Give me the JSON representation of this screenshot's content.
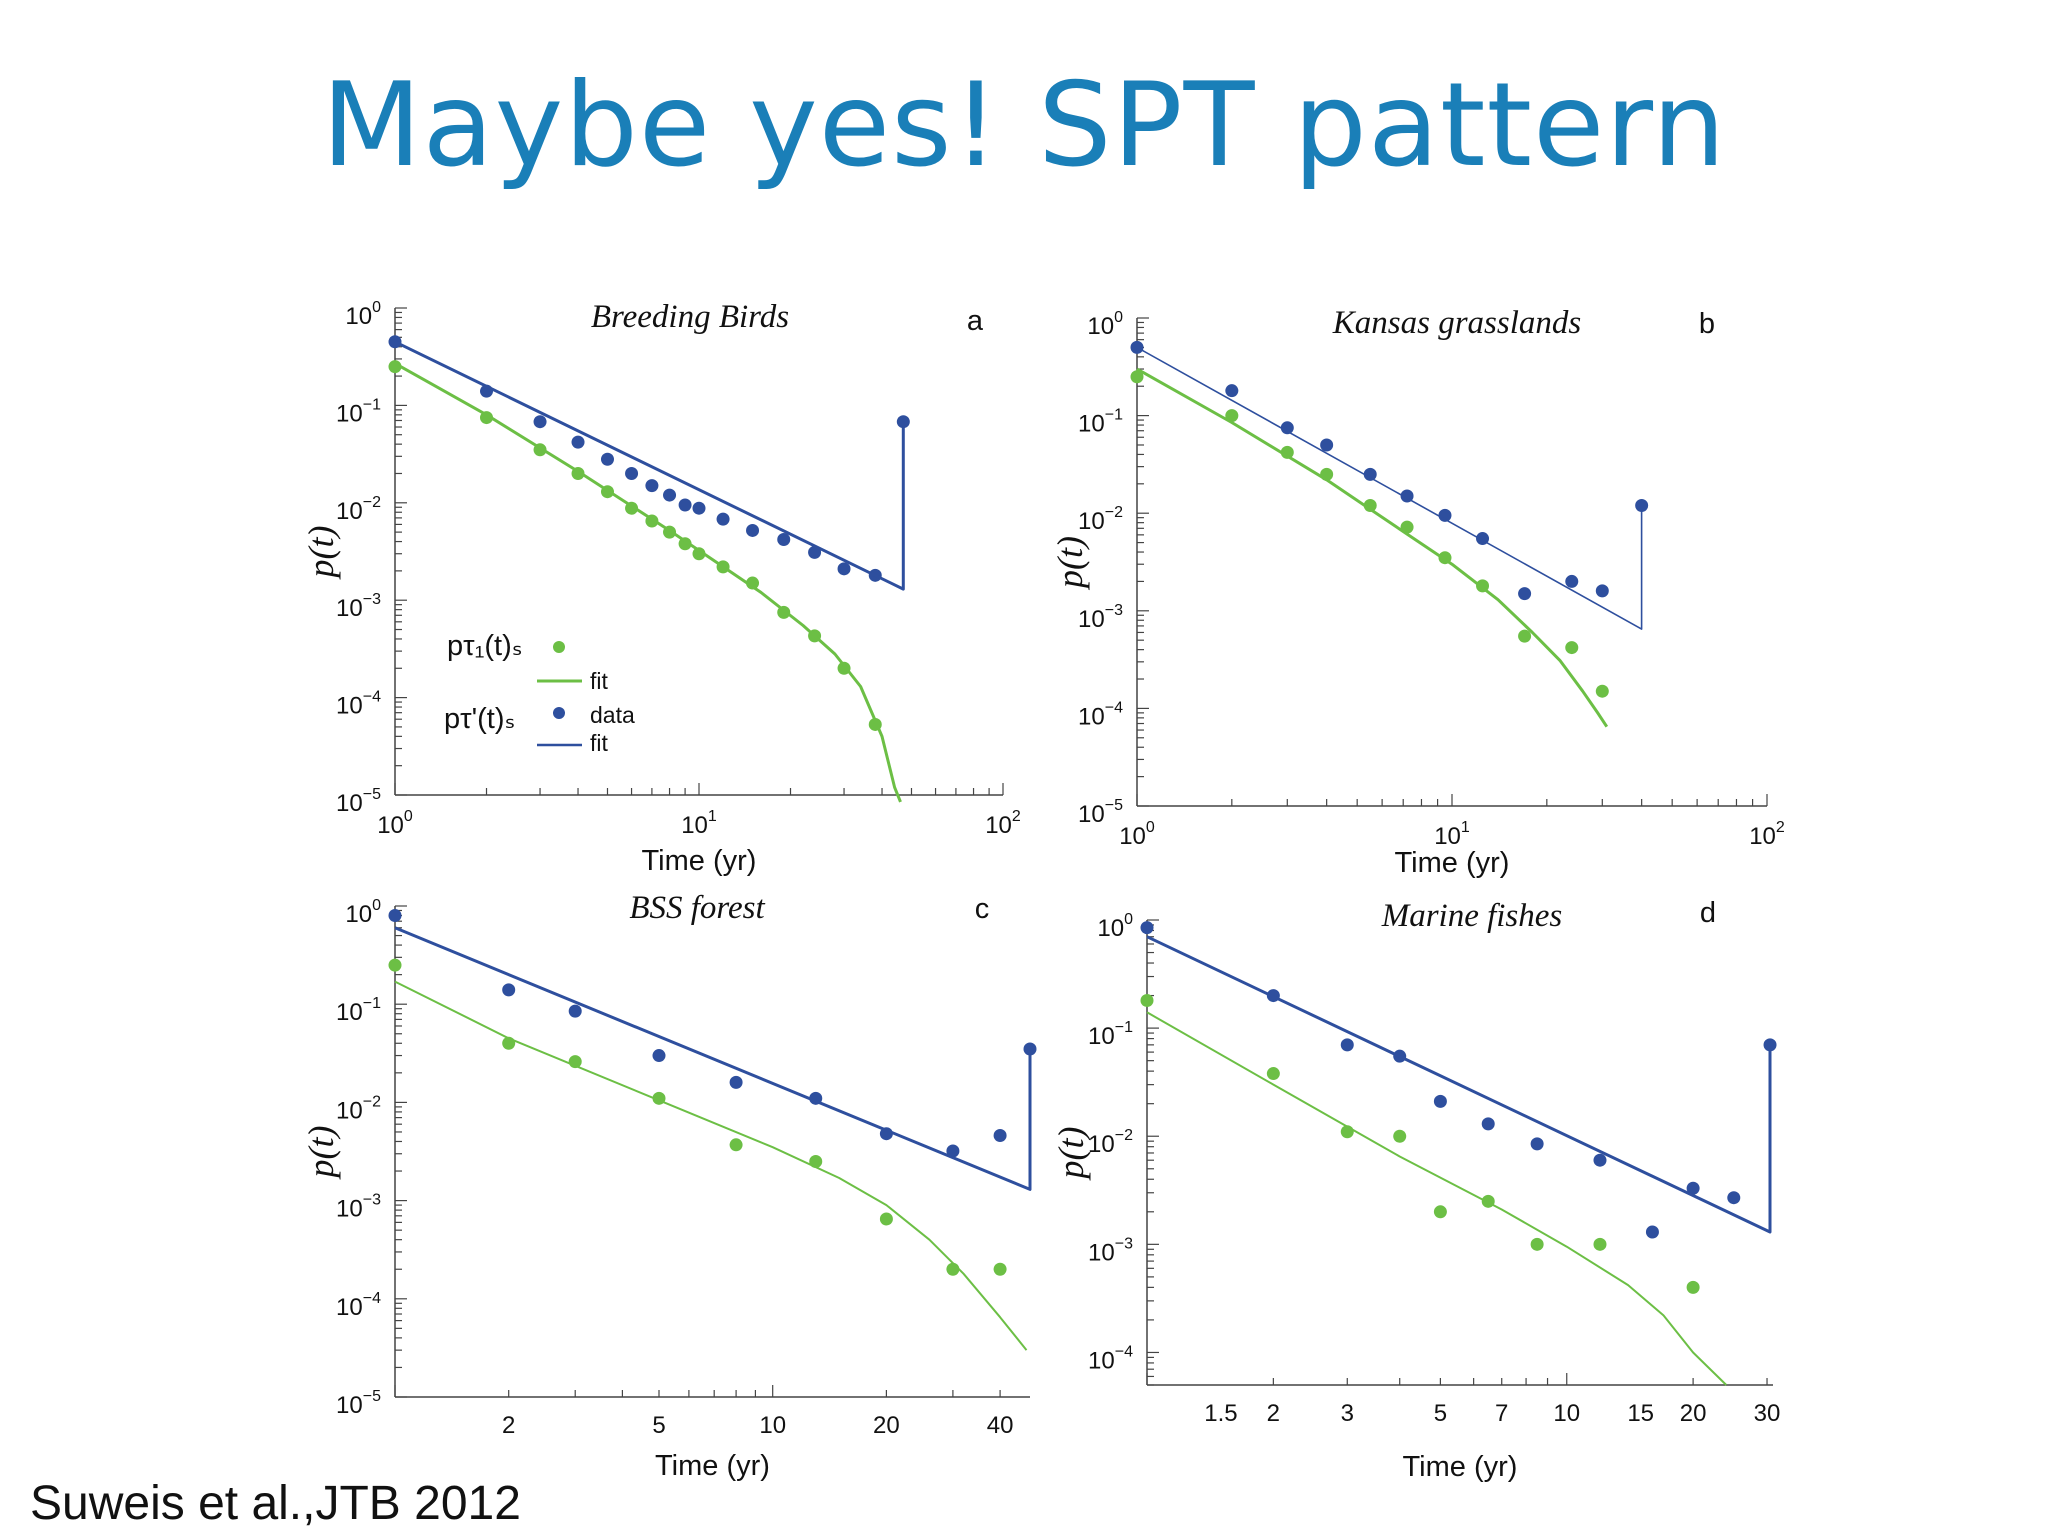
{
  "slide": {
    "title": "Maybe yes! SPT pattern",
    "citation": "Suweis et al.,JTB 2012"
  },
  "colors": {
    "green": "#6cbf45",
    "blue": "#2e4f9e",
    "title": "#1a7fb8"
  },
  "legend": {
    "green_label": "pτ₁(t)ₛ",
    "blue_label": "pτ'(t)ₛ",
    "data": "data",
    "fit": "fit"
  },
  "chart_data": [
    {
      "type": "scatter",
      "panel": "a",
      "title": "Breeding Birds",
      "xlabel": "Time (yr)",
      "ylabel": "p(t)",
      "xscale": "log",
      "yscale": "log",
      "xlim": [
        1,
        100
      ],
      "ylim": [
        1e-05,
        1
      ],
      "xticks": [
        {
          "v": 1,
          "m": "10",
          "e": "0"
        },
        {
          "v": 10,
          "m": "10",
          "e": "1"
        },
        {
          "v": 100,
          "m": "10",
          "e": "2"
        }
      ],
      "yticks": [
        {
          "v": 1,
          "m": "10",
          "e": "0"
        },
        {
          "v": 0.1,
          "m": "10",
          "e": "−1"
        },
        {
          "v": 0.01,
          "m": "10",
          "e": "−2"
        },
        {
          "v": 0.001,
          "m": "10",
          "e": "−3"
        },
        {
          "v": 0.0001,
          "m": "10",
          "e": "−4"
        },
        {
          "v": 1e-05,
          "m": "10",
          "e": "−5"
        }
      ],
      "show_legend": true,
      "series": [
        {
          "name": "pτ'(t)s data",
          "color": "blue",
          "kind": "points",
          "x": [
            1,
            2,
            3,
            4,
            5,
            6,
            7,
            8,
            9,
            10,
            12,
            15,
            19,
            24,
            30,
            38,
            47
          ],
          "y": [
            0.45,
            0.14,
            0.068,
            0.042,
            0.028,
            0.02,
            0.015,
            0.012,
            0.0095,
            0.0088,
            0.0068,
            0.0052,
            0.0042,
            0.0031,
            0.0021,
            0.0018,
            0.068
          ]
        },
        {
          "name": "pτ'(t)s fit",
          "color": "blue",
          "kind": "line",
          "width": 3,
          "x": [
            1,
            47,
            47
          ],
          "y": [
            0.45,
            0.0013,
            0.068
          ]
        },
        {
          "name": "pτ₁(t)s data",
          "color": "green",
          "kind": "points",
          "x": [
            1,
            2,
            3,
            4,
            5,
            6,
            7,
            8,
            9,
            10,
            12,
            15,
            19,
            24,
            30,
            38
          ],
          "y": [
            0.25,
            0.075,
            0.035,
            0.02,
            0.013,
            0.0088,
            0.0065,
            0.005,
            0.0038,
            0.003,
            0.0022,
            0.0015,
            0.00075,
            0.00043,
            0.0002,
            5.3e-05
          ]
        },
        {
          "name": "pτ₁(t)s fit",
          "color": "green",
          "kind": "line",
          "width": 3,
          "x": [
            1,
            2,
            4,
            8,
            12,
            16,
            22,
            28,
            34,
            40,
            44,
            46
          ],
          "y": [
            0.27,
            0.08,
            0.021,
            0.0052,
            0.0022,
            0.0012,
            0.00055,
            0.00028,
            0.00013,
            4e-05,
            1.2e-05,
            8.5e-06
          ]
        }
      ]
    },
    {
      "type": "scatter",
      "panel": "b",
      "title": "Kansas grasslands",
      "xlabel": "Time (yr)",
      "ylabel": "p(t)",
      "xscale": "log",
      "yscale": "log",
      "xlim": [
        1,
        100
      ],
      "ylim": [
        1e-05,
        1
      ],
      "xticks": [
        {
          "v": 1,
          "m": "10",
          "e": "0"
        },
        {
          "v": 10,
          "m": "10",
          "e": "1"
        },
        {
          "v": 100,
          "m": "10",
          "e": "2"
        }
      ],
      "yticks": [
        {
          "v": 1,
          "m": "10",
          "e": "0"
        },
        {
          "v": 0.1,
          "m": "10",
          "e": "−1"
        },
        {
          "v": 0.01,
          "m": "10",
          "e": "−2"
        },
        {
          "v": 0.001,
          "m": "10",
          "e": "−3"
        },
        {
          "v": 0.0001,
          "m": "10",
          "e": "−4"
        },
        {
          "v": 1e-05,
          "m": "10",
          "e": "−5"
        }
      ],
      "show_legend": false,
      "series": [
        {
          "name": "pτ'(t)s data",
          "color": "blue",
          "kind": "points",
          "x": [
            1,
            2,
            3,
            4,
            5.5,
            7.2,
            9.5,
            12.5,
            17,
            24,
            30,
            40
          ],
          "y": [
            0.5,
            0.18,
            0.075,
            0.05,
            0.025,
            0.015,
            0.0095,
            0.0055,
            0.0015,
            0.002,
            0.0016,
            0.012
          ]
        },
        {
          "name": "pτ'(t)s fit",
          "color": "blue",
          "kind": "line",
          "width": 1.6,
          "x": [
            1,
            40,
            40
          ],
          "y": [
            0.5,
            0.00065,
            0.012
          ]
        },
        {
          "name": "pτ₁(t)s data",
          "color": "green",
          "kind": "points",
          "x": [
            1,
            2,
            3,
            4,
            5.5,
            7.2,
            9.5,
            12.5,
            17,
            24,
            30
          ],
          "y": [
            0.25,
            0.1,
            0.042,
            0.025,
            0.012,
            0.0072,
            0.0035,
            0.0018,
            0.00055,
            0.00042,
            0.00015
          ]
        },
        {
          "name": "pτ₁(t)s fit",
          "color": "green",
          "kind": "line",
          "width": 3,
          "x": [
            1,
            2,
            4,
            7,
            10,
            14,
            18,
            22,
            26,
            29,
            31
          ],
          "y": [
            0.3,
            0.085,
            0.022,
            0.0065,
            0.003,
            0.0013,
            0.0006,
            0.00031,
            0.00015,
            9e-05,
            6.5e-05
          ]
        }
      ]
    },
    {
      "type": "scatter",
      "panel": "c",
      "title": "BSS forest",
      "xlabel": "Time (yr)",
      "ylabel": "p(t)",
      "xscale": "log",
      "yscale": "log",
      "xlim": [
        1,
        48
      ],
      "ylim": [
        1e-05,
        1
      ],
      "xticks": [
        {
          "v": 2,
          "m": "2",
          "e": ""
        },
        {
          "v": 5,
          "m": "5",
          "e": ""
        },
        {
          "v": 10,
          "m": "10",
          "e": ""
        },
        {
          "v": 20,
          "m": "20",
          "e": ""
        },
        {
          "v": 40,
          "m": "40",
          "e": ""
        }
      ],
      "yticks": [
        {
          "v": 1,
          "m": "10",
          "e": "0"
        },
        {
          "v": 0.1,
          "m": "10",
          "e": "−1"
        },
        {
          "v": 0.01,
          "m": "10",
          "e": "−2"
        },
        {
          "v": 0.001,
          "m": "10",
          "e": "−3"
        },
        {
          "v": 0.0001,
          "m": "10",
          "e": "−4"
        },
        {
          "v": 1e-05,
          "m": "10",
          "e": "−5"
        }
      ],
      "show_legend": false,
      "series": [
        {
          "name": "pτ'(t)s data",
          "color": "blue",
          "kind": "points",
          "x": [
            1,
            2,
            3,
            5,
            8,
            13,
            20,
            30,
            40,
            48
          ],
          "y": [
            0.8,
            0.14,
            0.085,
            0.03,
            0.016,
            0.011,
            0.0048,
            0.0032,
            0.0046,
            0.035
          ]
        },
        {
          "name": "pτ'(t)s fit",
          "color": "blue",
          "kind": "line",
          "width": 3,
          "x": [
            1,
            48,
            48
          ],
          "y": [
            0.6,
            0.0013,
            0.035
          ]
        },
        {
          "name": "pτ₁(t)s data",
          "color": "green",
          "kind": "points",
          "x": [
            1,
            2,
            3,
            5,
            8,
            13,
            20,
            30,
            40
          ],
          "y": [
            0.25,
            0.04,
            0.026,
            0.011,
            0.0037,
            0.0025,
            0.00065,
            0.0002,
            0.0002
          ]
        },
        {
          "name": "pτ₁(t)s fit",
          "color": "green",
          "kind": "line",
          "width": 2,
          "x": [
            1,
            2,
            5,
            10,
            15,
            20,
            26,
            32,
            40,
            47
          ],
          "y": [
            0.17,
            0.045,
            0.0105,
            0.0035,
            0.0017,
            0.0009,
            0.0004,
            0.00018,
            6.5e-05,
            3e-05
          ]
        }
      ]
    },
    {
      "type": "scatter",
      "panel": "d",
      "title": "Marine fishes",
      "xlabel": "Time (yr)",
      "ylabel": "p(t)",
      "xscale": "log",
      "yscale": "log",
      "xlim": [
        1,
        31
      ],
      "ylim": [
        5e-05,
        1
      ],
      "xticks": [
        {
          "v": 1.5,
          "m": "1.5",
          "e": ""
        },
        {
          "v": 2,
          "m": "2",
          "e": ""
        },
        {
          "v": 3,
          "m": "3",
          "e": ""
        },
        {
          "v": 5,
          "m": "5",
          "e": ""
        },
        {
          "v": 7,
          "m": "7",
          "e": ""
        },
        {
          "v": 10,
          "m": "10",
          "e": ""
        },
        {
          "v": 15,
          "m": "15",
          "e": ""
        },
        {
          "v": 20,
          "m": "20",
          "e": ""
        },
        {
          "v": 30,
          "m": "30",
          "e": ""
        }
      ],
      "yticks": [
        {
          "v": 1,
          "m": "10",
          "e": "0"
        },
        {
          "v": 0.1,
          "m": "10",
          "e": "−1"
        },
        {
          "v": 0.01,
          "m": "10",
          "e": "−2"
        },
        {
          "v": 0.001,
          "m": "10",
          "e": "−3"
        },
        {
          "v": 0.0001,
          "m": "10",
          "e": "−4"
        }
      ],
      "show_legend": false,
      "series": [
        {
          "name": "pτ'(t)s data",
          "color": "blue",
          "kind": "points",
          "x": [
            1,
            2,
            3,
            4,
            5,
            6.5,
            8.5,
            12,
            16,
            20,
            25,
            30.5
          ],
          "y": [
            0.85,
            0.2,
            0.07,
            0.055,
            0.021,
            0.013,
            0.0085,
            0.006,
            0.0013,
            0.0033,
            0.0027,
            0.07
          ]
        },
        {
          "name": "pτ'(t)s fit",
          "color": "blue",
          "kind": "line",
          "width": 3,
          "x": [
            1,
            30.5,
            30.5
          ],
          "y": [
            0.7,
            0.0013,
            0.07
          ]
        },
        {
          "name": "pτ₁(t)s data",
          "color": "green",
          "kind": "points",
          "x": [
            1,
            2,
            3,
            4,
            5,
            6.5,
            8.5,
            12,
            20
          ],
          "y": [
            0.18,
            0.038,
            0.011,
            0.01,
            0.002,
            0.0025,
            0.001,
            0.001,
            0.0004
          ]
        },
        {
          "name": "pτ₁(t)s fit",
          "color": "green",
          "kind": "line",
          "width": 2,
          "x": [
            1,
            2,
            4,
            7,
            10,
            14,
            17,
            20,
            24
          ],
          "y": [
            0.14,
            0.03,
            0.0065,
            0.0021,
            0.00095,
            0.00042,
            0.00022,
            0.0001,
            5e-05
          ]
        }
      ]
    }
  ]
}
